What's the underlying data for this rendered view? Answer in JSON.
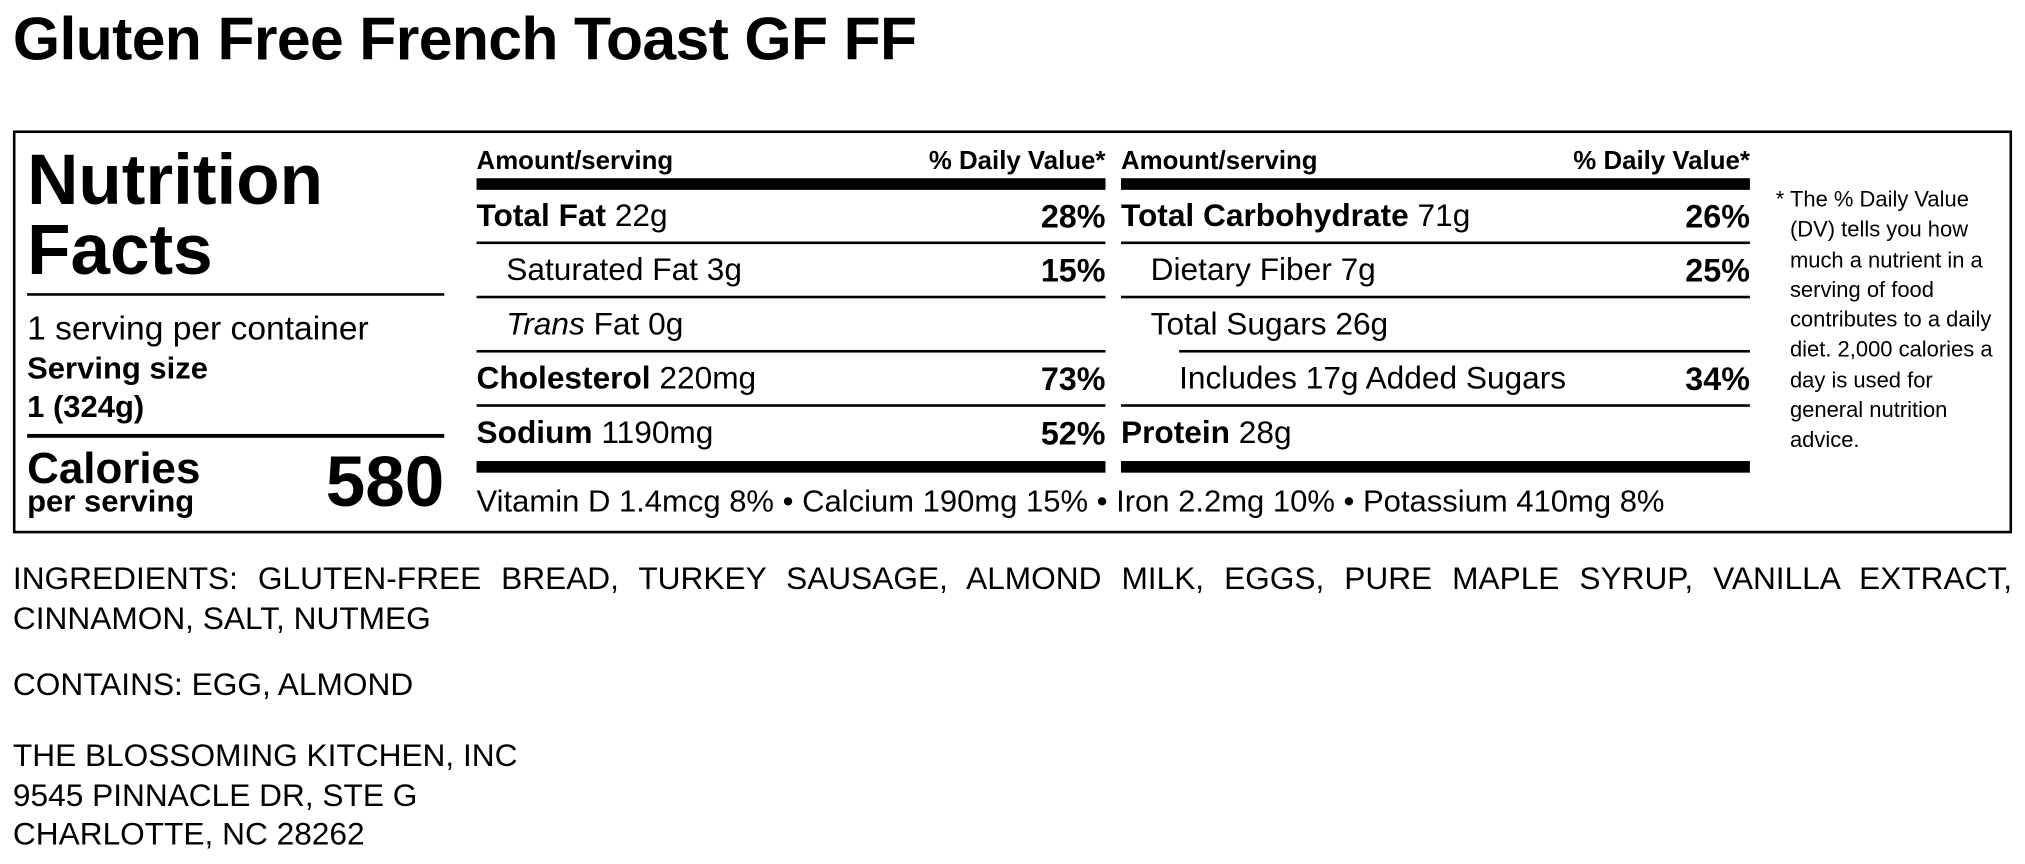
{
  "title": "Gluten Free French Toast GF FF",
  "label": {
    "heading": "Nutrition Facts",
    "servings_per_container": "1 serving per container",
    "serving_size_label": "Serving size",
    "serving_size": "1 (324g)",
    "calories_label": "Calories",
    "calories_sub": "per serving",
    "calories": 580,
    "columns": [
      {
        "amount_header": "Amount/serving",
        "dv_header": "% Daily Value*",
        "rows": [
          {
            "name": "Total Fat",
            "amount": "22g",
            "dv": "28%"
          },
          {
            "name": "Saturated Fat",
            "amount": "3g",
            "dv": "15%"
          },
          {
            "name_italic": "Trans",
            "name": "Fat",
            "amount": "0g"
          },
          {
            "name": "Cholesterol",
            "amount": "220mg",
            "dv": "73%"
          },
          {
            "name": "Sodium",
            "amount": "1190mg",
            "dv": "52%"
          }
        ]
      },
      {
        "amount_header": "Amount/serving",
        "dv_header": "% Daily Value*",
        "rows": [
          {
            "name": "Total Carbohydrate",
            "amount": "71g",
            "dv": "26%"
          },
          {
            "name": "Dietary Fiber",
            "amount": "7g",
            "dv": "25%"
          },
          {
            "name": "Total Sugars",
            "amount": "26g"
          },
          {
            "name": "Includes 17g Added Sugars",
            "dv": "34%"
          },
          {
            "name": "Protein",
            "amount": "28g"
          }
        ]
      }
    ],
    "vitamins": "Vitamin D 1.4mcg 8% • Calcium 190mg 15% • Iron 2.2mg 10% • Potassium 410mg 8%",
    "footnote_mark": "*",
    "footnote": "The % Daily Value (DV) tells you how much a nutrient in a serving of food contributes to a daily diet. 2,000 calories a day is used for general nutrition advice."
  },
  "ingredients": "INGREDIENTS: GLUTEN-FREE BREAD, TURKEY SAUSAGE, ALMOND MILK, EGGS, PURE MAPLE SYRUP, VANILLA EXTRACT, CINNAMON, SALT, NUTMEG",
  "contains": "CONTAINS: EGG, ALMOND",
  "address": [
    "THE BLOSSOMING KITCHEN, INC",
    "9545 PINNACLE DR, STE G",
    "CHARLOTTE, NC 28262"
  ]
}
